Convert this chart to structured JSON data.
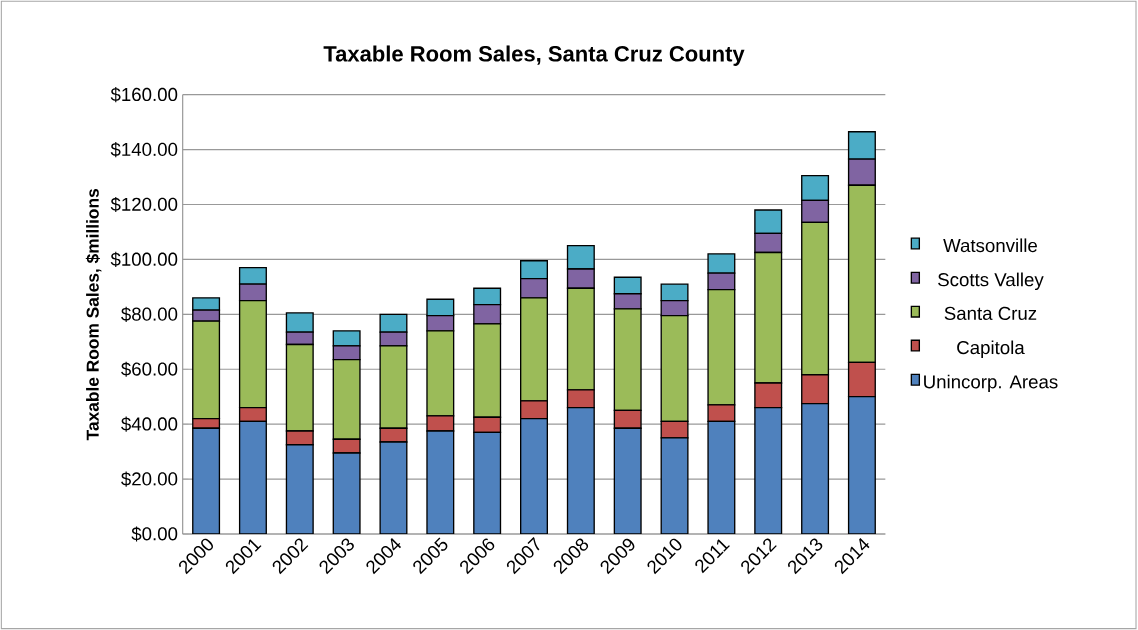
{
  "chart_data": {
    "type": "bar",
    "stacked": true,
    "title": "Taxable Room Sales, Santa Cruz County",
    "ylabel": "Taxable Room Sales, $millions",
    "categories": [
      "2000",
      "2001",
      "2002",
      "2003",
      "2004",
      "2005",
      "2006",
      "2007",
      "2008",
      "2009",
      "2010",
      "2011",
      "2012",
      "2013",
      "2014"
    ],
    "series": [
      {
        "name": "Unincorp. Areas",
        "color": "#4f81bd",
        "values": [
          38.5,
          41,
          32.5,
          29.5,
          33.5,
          37.5,
          37,
          42,
          46,
          38.5,
          35,
          41,
          46,
          47.5,
          50
        ]
      },
      {
        "name": "Capitola",
        "color": "#c0504d",
        "values": [
          3.5,
          5,
          5,
          5,
          5,
          5.5,
          5.5,
          6.5,
          6.5,
          6.5,
          6,
          6,
          9,
          10.5,
          12.5
        ]
      },
      {
        "name": "Santa Cruz",
        "color": "#9bbb59",
        "values": [
          35.5,
          39,
          31.5,
          29,
          30,
          31,
          34,
          37.5,
          37,
          37,
          38.5,
          42,
          47.5,
          55.5,
          64.5
        ]
      },
      {
        "name": "Scotts Valley",
        "color": "#8064a2",
        "values": [
          4,
          6,
          4.5,
          5,
          5,
          5.5,
          7,
          7,
          7,
          5.5,
          5.5,
          6,
          7,
          8,
          9.5
        ]
      },
      {
        "name": "Watsonville",
        "color": "#4bacc6",
        "values": [
          4.5,
          6,
          7,
          5.5,
          6.5,
          6,
          6,
          6.5,
          8.5,
          6,
          6,
          7,
          8.5,
          9,
          10
        ]
      }
    ],
    "ylim": [
      0,
      160
    ],
    "yticks": [
      {
        "value": 0,
        "label": "$0.00"
      },
      {
        "value": 20,
        "label": "$20.00"
      },
      {
        "value": 40,
        "label": "$40.00"
      },
      {
        "value": 60,
        "label": "$60.00"
      },
      {
        "value": 80,
        "label": "$80.00"
      },
      {
        "value": 100,
        "label": "$100.00"
      },
      {
        "value": 120,
        "label": "$120.00"
      },
      {
        "value": 140,
        "label": "$140.00"
      },
      {
        "value": 160,
        "label": "$160.00"
      }
    ],
    "grid": "y",
    "legend": "right"
  }
}
